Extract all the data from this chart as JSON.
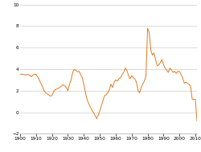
{
  "line_color": "#E8771E",
  "background_color": "#ffffff",
  "ylim": [
    -2,
    10
  ],
  "xlim": [
    1900,
    2011
  ],
  "yticks": [
    -2,
    0,
    2,
    4,
    6,
    8,
    10
  ],
  "xticks": [
    1900,
    1910,
    1920,
    1930,
    1940,
    1950,
    1960,
    1970,
    1980,
    1990,
    2000,
    2010
  ],
  "linewidth": 0.7,
  "grid_color": "#cccccc",
  "spine_color": "#aaaaaa",
  "tick_fontsize": 4.2,
  "series_years": [
    1900,
    1901,
    1902,
    1903,
    1904,
    1905,
    1906,
    1907,
    1908,
    1909,
    1910,
    1911,
    1912,
    1913,
    1914,
    1915,
    1916,
    1917,
    1918,
    1919,
    1920,
    1921,
    1922,
    1923,
    1924,
    1925,
    1926,
    1927,
    1928,
    1929,
    1930,
    1931,
    1932,
    1933,
    1934,
    1935,
    1936,
    1937,
    1938,
    1939,
    1940,
    1941,
    1942,
    1943,
    1944,
    1945,
    1946,
    1947,
    1948,
    1949,
    1950,
    1951,
    1952,
    1953,
    1954,
    1955,
    1956,
    1957,
    1958,
    1959,
    1960,
    1961,
    1962,
    1963,
    1964,
    1965,
    1966,
    1967,
    1968,
    1969,
    1970,
    1971,
    1972,
    1973,
    1974,
    1975,
    1976,
    1977,
    1978,
    1979,
    1980,
    1981,
    1982,
    1983,
    1984,
    1985,
    1986,
    1987,
    1988,
    1989,
    1990,
    1991,
    1992,
    1993,
    1994,
    1995,
    1996,
    1997,
    1998,
    1999,
    2000,
    2001,
    2002,
    2003,
    2004,
    2005,
    2006,
    2007,
    2008,
    2009,
    2010,
    2011
  ],
  "series_values": [
    3.5,
    3.55,
    3.5,
    3.45,
    3.5,
    3.5,
    3.45,
    3.3,
    3.45,
    3.55,
    3.5,
    3.3,
    3.0,
    2.7,
    2.4,
    2.0,
    1.8,
    1.7,
    1.6,
    1.5,
    1.55,
    1.9,
    2.1,
    2.15,
    2.25,
    2.3,
    2.45,
    2.55,
    2.45,
    2.3,
    2.0,
    2.6,
    3.0,
    3.7,
    4.0,
    3.9,
    3.75,
    3.8,
    3.5,
    3.2,
    2.6,
    1.8,
    1.2,
    0.8,
    0.5,
    0.2,
    0.0,
    -0.3,
    -0.6,
    -0.3,
    0.1,
    0.6,
    1.1,
    1.55,
    1.6,
    1.8,
    2.1,
    2.6,
    2.3,
    2.8,
    3.0,
    2.9,
    3.1,
    3.2,
    3.5,
    3.7,
    4.1,
    3.9,
    3.4,
    3.1,
    3.4,
    3.2,
    3.1,
    2.8,
    2.0,
    1.8,
    2.3,
    2.6,
    2.9,
    3.4,
    7.8,
    7.4,
    5.8,
    5.3,
    5.5,
    4.9,
    4.3,
    4.4,
    4.6,
    4.9,
    4.4,
    4.1,
    3.9,
    3.7,
    4.1,
    3.9,
    3.7,
    3.8,
    3.6,
    3.8,
    3.8,
    3.5,
    3.2,
    2.7,
    2.8,
    2.7,
    2.6,
    2.4,
    1.2,
    1.2,
    1.2,
    -0.8
  ]
}
